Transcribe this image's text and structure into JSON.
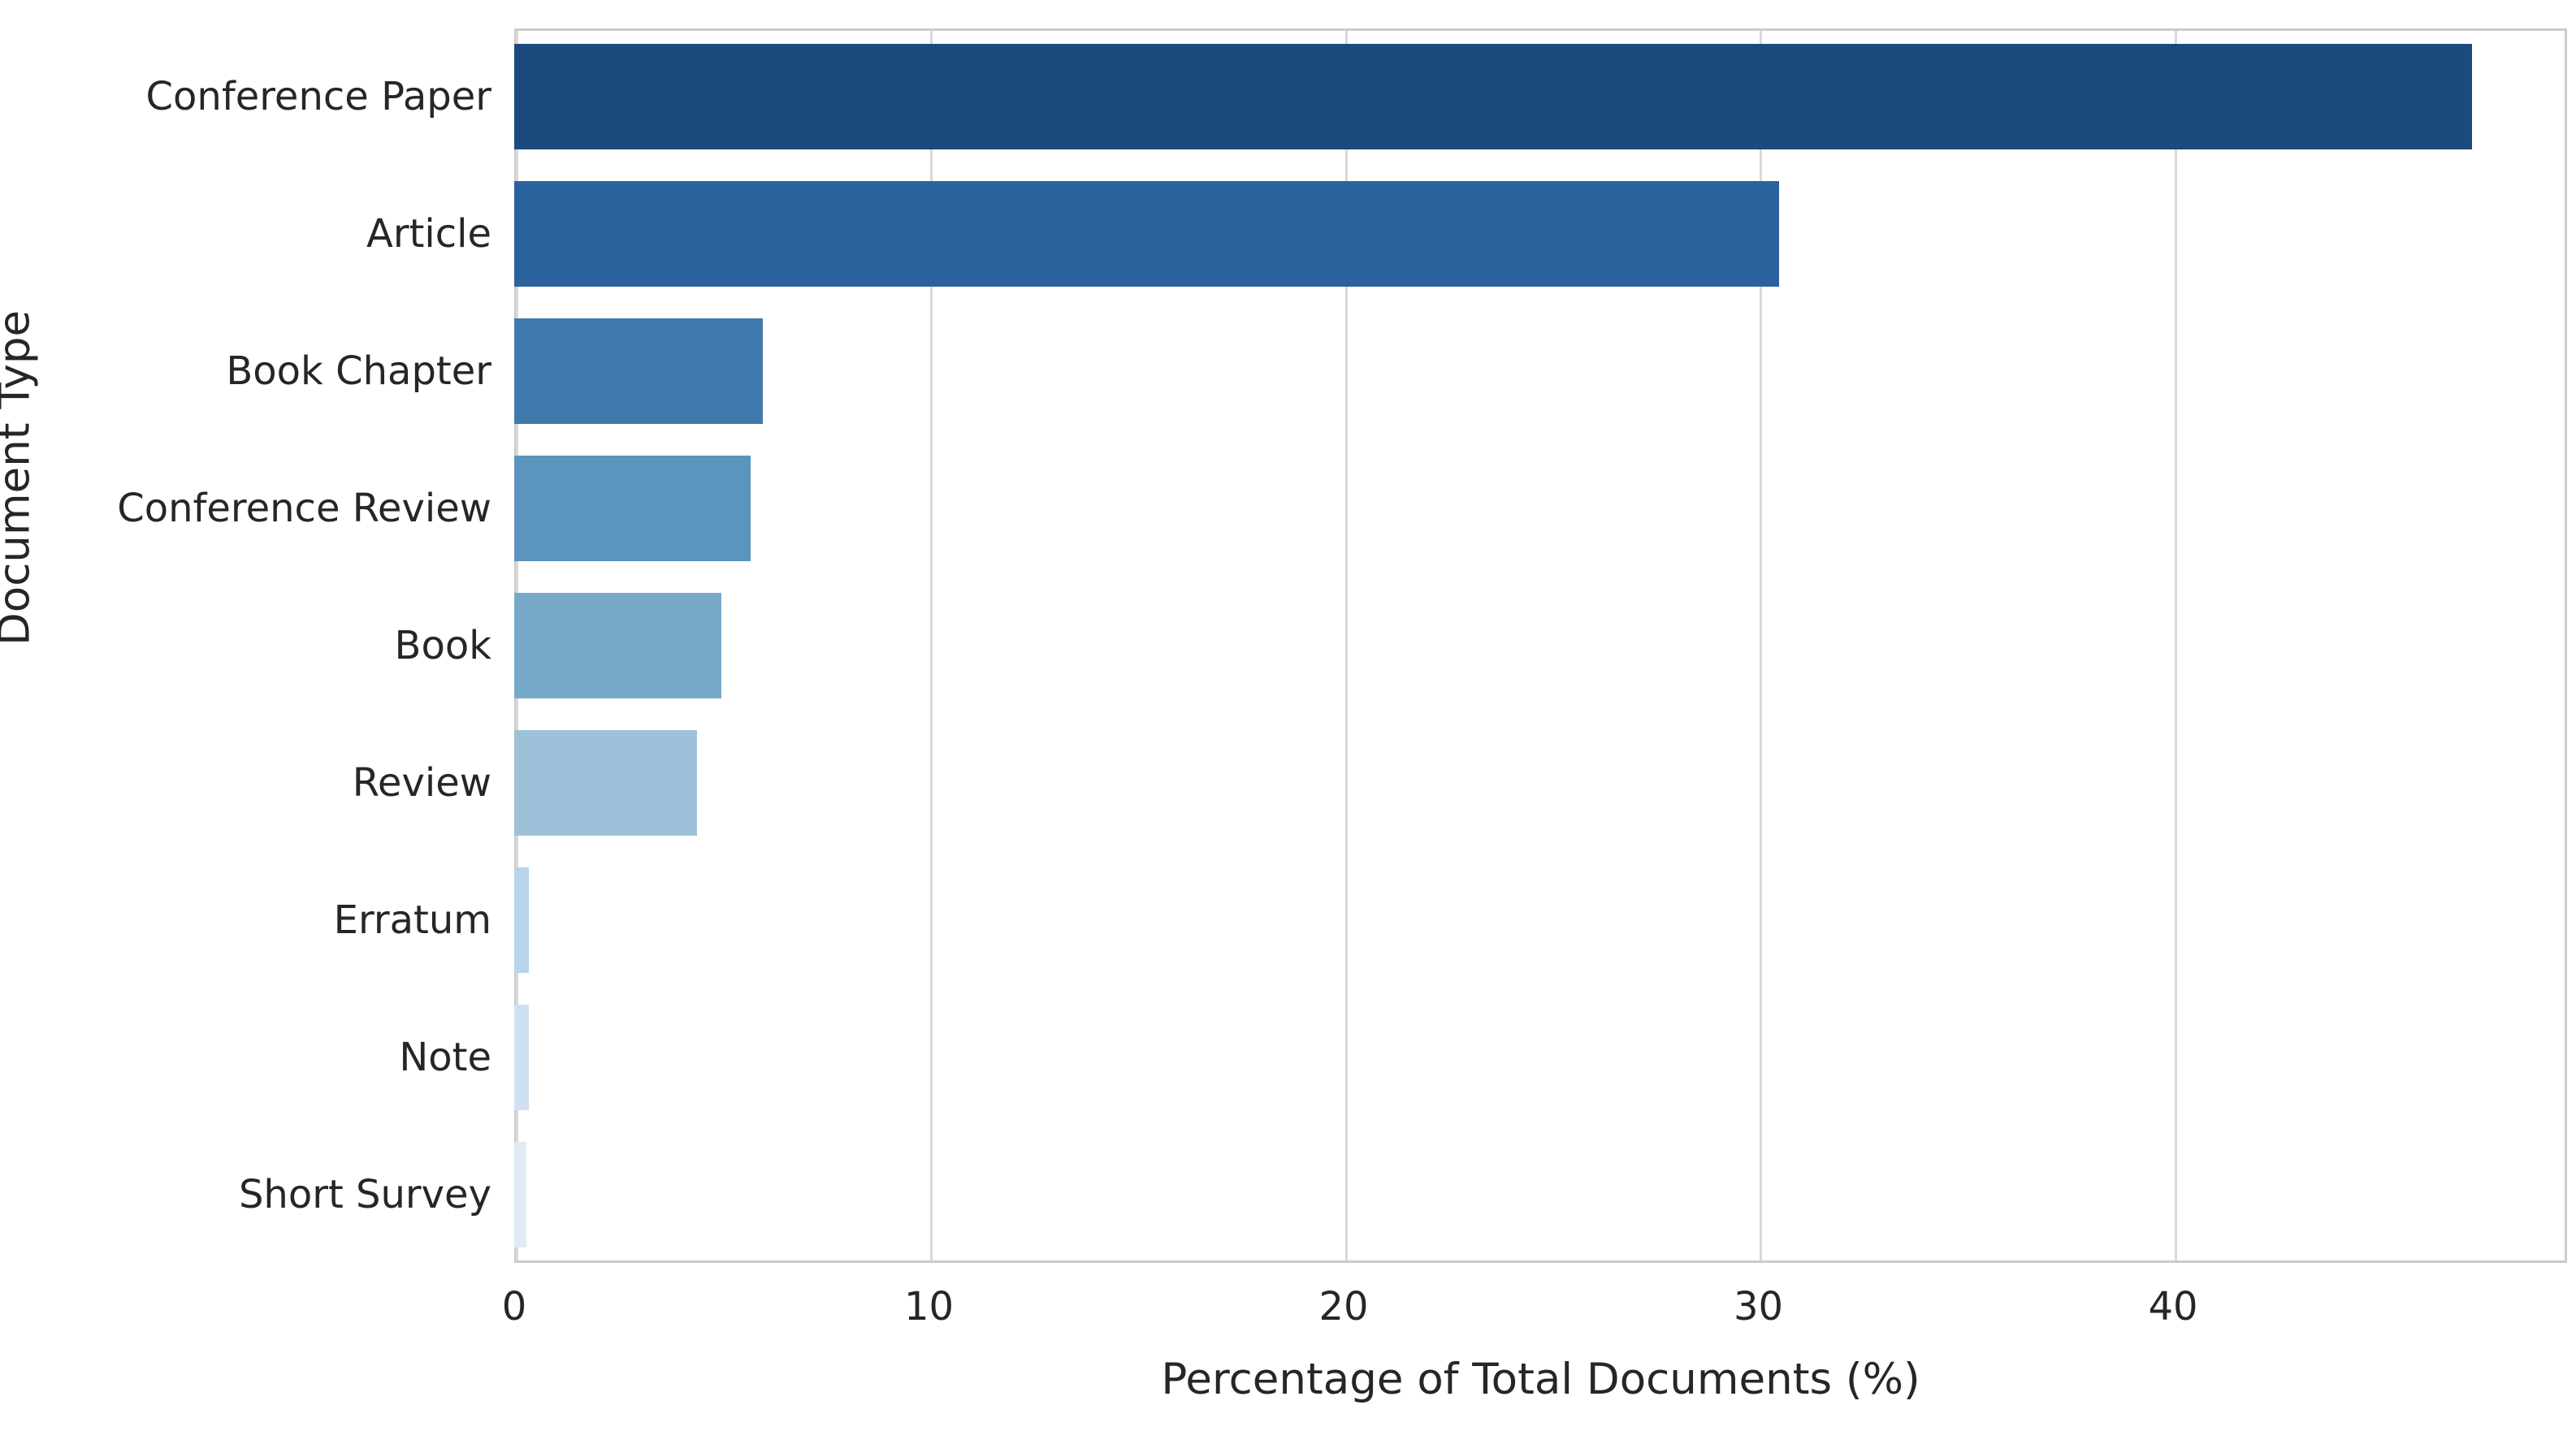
{
  "chart_data": {
    "type": "bar",
    "orientation": "horizontal",
    "categories": [
      "Conference Paper",
      "Article",
      "Book Chapter",
      "Conference Review",
      "Book",
      "Review",
      "Erratum",
      "Note",
      "Short Survey"
    ],
    "values": [
      47.2,
      30.5,
      6.0,
      5.7,
      5.0,
      4.4,
      0.35,
      0.35,
      0.3
    ],
    "bar_colors": [
      "#1b4a7e",
      "#2a629e",
      "#3e7bac",
      "#5b94bd",
      "#77a9c9",
      "#9dc1d9",
      "#b7d4ea",
      "#cfe0f0",
      "#e1eaf5"
    ],
    "xlabel": "Percentage of Total Documents (%)",
    "ylabel": "Document Type",
    "x_ticks": [
      "0",
      "10",
      "20",
      "30",
      "40"
    ],
    "x_tick_values": [
      0,
      10,
      20,
      30,
      40
    ],
    "xlim": [
      0,
      49.5
    ],
    "grid": true,
    "legend": "none",
    "colors": {
      "background": "#ffffff",
      "grid": "#d9d9d9",
      "plot_border": "#cccccc",
      "text": "#262626"
    }
  }
}
